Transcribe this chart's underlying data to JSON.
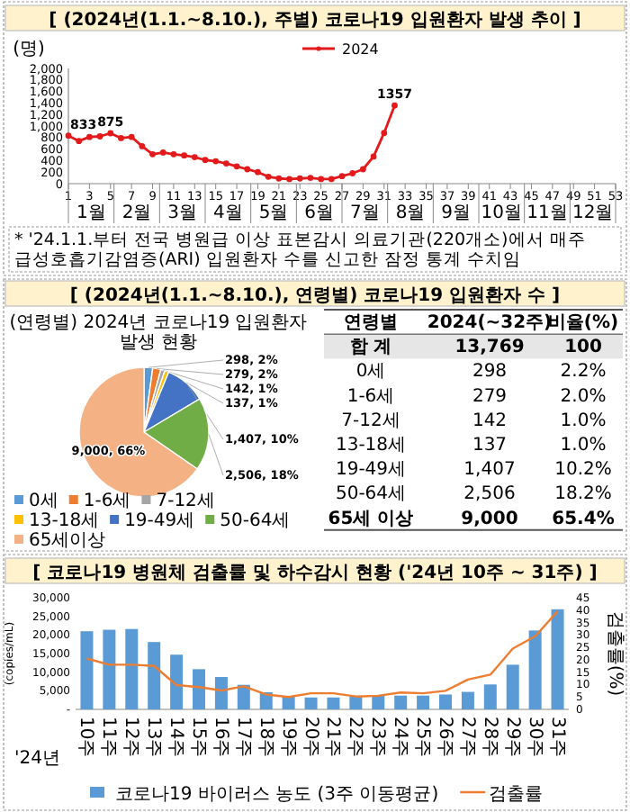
{
  "chart_data": [
    {
      "type": "line",
      "title": "[ (2024년(1.1.~8.10.), 주별) 코로나19 입원환자 발생 추이 ]",
      "ylabel": "(명)",
      "legend": "top",
      "marker": "circle",
      "xlim": [
        1,
        53
      ],
      "xticks": [
        1,
        3,
        5,
        7,
        9,
        11,
        13,
        15,
        17,
        19,
        21,
        23,
        25,
        27,
        29,
        31,
        33,
        35,
        37,
        39,
        41,
        43,
        45,
        47,
        49,
        51,
        53
      ],
      "ylim": [
        0,
        2000
      ],
      "yticks": [
        0,
        200,
        400,
        600,
        800,
        {
          "value": 1000,
          "label": "1,000"
        },
        {
          "value": 1200,
          "label": "1,200"
        },
        {
          "value": 1400,
          "label": "1,400"
        },
        {
          "value": 1600,
          "label": "1,600"
        },
        {
          "value": 1800,
          "label": "1,800"
        },
        {
          "value": 2000,
          "label": "2,000"
        }
      ],
      "series": [
        {
          "name": "2024",
          "color": "#e31a1c",
          "x": [
            1,
            2,
            3,
            4,
            5,
            6,
            7,
            8,
            9,
            10,
            11,
            12,
            13,
            14,
            15,
            16,
            17,
            18,
            19,
            20,
            21,
            22,
            23,
            24,
            25,
            26,
            27,
            28,
            29,
            30,
            31,
            32
          ],
          "values": [
            833,
            740,
            810,
            820,
            875,
            790,
            810,
            650,
            510,
            540,
            510,
            490,
            460,
            410,
            390,
            350,
            300,
            250,
            200,
            120,
            90,
            80,
            90,
            100,
            80,
            80,
            130,
            180,
            250,
            470,
            880,
            1357
          ],
          "value_labels": [
            "833",
            null,
            null,
            null,
            "875",
            null,
            null,
            null,
            null,
            null,
            null,
            null,
            null,
            null,
            null,
            null,
            null,
            null,
            null,
            null,
            null,
            null,
            null,
            null,
            null,
            null,
            null,
            null,
            null,
            null,
            null,
            "1357"
          ]
        }
      ],
      "annotations": [
        "1월",
        "2월",
        "3월",
        "4월",
        "5월",
        "6월",
        "7월",
        "8월",
        "9월",
        "10월",
        "11월",
        "12월",
        "* '24.1.1.부터 전국 병원급 이상 표본감시 의료기관(220개소)에서 매주 급성호흡기감염증(ARI) 입원환자 수를 신고한 잠정 통계 수치임"
      ]
    },
    {
      "type": "pie",
      "title": "[ (2024년(1.1.~8.10.), 연령별) 코로나19 입원환자 수 ]",
      "subtitle": "(연령별) 2024년 코로나19 입원환자 발생 현황",
      "legend": "bottom",
      "categories": [
        "0세",
        "1-6세",
        "7-12세",
        "13-18세",
        "19-49세",
        "50-64세",
        "65세이상"
      ],
      "values": [
        298,
        279,
        142,
        137,
        1407,
        2506,
        9000
      ],
      "colors": [
        "#5b9bd5",
        "#ed7d31",
        "#a5a5a5",
        "#ffc000",
        "#4472c4",
        "#70ad47",
        "#f4b183"
      ],
      "value_labels": [
        "298, 2%",
        "279, 2%",
        "142, 1%",
        "137, 1%",
        "1,407, 10%",
        "2,506, 18%",
        "9,000, 66%"
      ]
    },
    {
      "type": "other",
      "legend_title": "연령별",
      "categories": [
        "합 계",
        "0세",
        "1-6세",
        "7-12세",
        "13-18세",
        "19-49세",
        "50-64세",
        "65세 이상"
      ],
      "series": [
        {
          "name": "2024(~32주)",
          "values": [
            13769,
            298,
            279,
            142,
            137,
            1407,
            2506,
            9000
          ],
          "value_labels": [
            "13,769",
            "298",
            "279",
            "142",
            "137",
            "1,407",
            "2,506",
            "9,000"
          ]
        },
        {
          "name": "비율(%)",
          "values": [
            100,
            2.2,
            2.0,
            1.0,
            1.0,
            10.2,
            18.2,
            65.4
          ],
          "value_labels": [
            "100",
            "2.2%",
            "2.0%",
            "1.0%",
            "1.0%",
            "10.2%",
            "18.2%",
            "65.4%"
          ]
        }
      ]
    },
    {
      "type": "bar",
      "title": "[ 코로나19 병원체 검출률 및 하수감시 현황 ('24년 10주 ~ 31주) ]",
      "ylabel": "(copies/mL)",
      "y2label": "검출률(%)",
      "legend": "bottom",
      "categories": [
        "10주",
        "11주",
        "12주",
        "13주",
        "14주",
        "15주",
        "16주",
        "17주",
        "18주",
        "19주",
        "20주",
        "21주",
        "22주",
        "23주",
        "24주",
        "25주",
        "26주",
        "27주",
        "28주",
        "29주",
        "30주",
        "31주"
      ],
      "ylim": [
        0,
        30000
      ],
      "yticks": [
        {
          "value": 0,
          "label": "-"
        },
        {
          "value": 5000,
          "label": "5,000"
        },
        {
          "value": 10000,
          "label": "10,000"
        },
        {
          "value": 15000,
          "label": "15,000"
        },
        {
          "value": 20000,
          "label": "20,000"
        },
        {
          "value": 25000,
          "label": "25,000"
        },
        {
          "value": 30000,
          "label": "30,000"
        }
      ],
      "y2lim": [
        0,
        45
      ],
      "y2ticks": [
        0,
        5,
        10,
        15,
        20,
        25,
        30,
        35,
        40,
        45
      ],
      "series": [
        {
          "name": "코로나19 바이러스 농도 (3주 이동평균)",
          "color": "#5b9bd5",
          "values": [
            21000,
            21400,
            21600,
            18100,
            14700,
            10800,
            8700,
            6600,
            4600,
            3400,
            3200,
            3200,
            3500,
            3800,
            3700,
            3700,
            4000,
            4700,
            6700,
            12000,
            21200,
            26900
          ]
        },
        {
          "name": "검출률",
          "type": "line",
          "axis": "y2",
          "color": "#ed7d31",
          "values": [
            20.5,
            18,
            18,
            17.5,
            9.8,
            9,
            7.6,
            9.3,
            6,
            5,
            6.5,
            6.5,
            5.2,
            5.5,
            6.8,
            6.5,
            7.5,
            12,
            14,
            24.5,
            29.5,
            39.5
          ]
        }
      ],
      "annotations": [
        "'24년"
      ]
    }
  ]
}
